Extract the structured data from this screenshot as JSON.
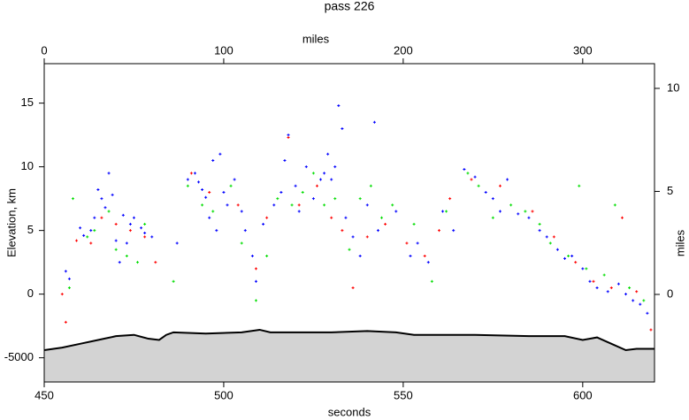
{
  "chart_data": {
    "type": "scatter",
    "title": "pass 226",
    "xlabel": "seconds",
    "x2label": "miles",
    "ylabel": "Elevation, km",
    "y2label": "miles",
    "xlim": [
      450,
      620
    ],
    "xticks": [
      450,
      500,
      550,
      600
    ],
    "x2lim": [
      0,
      340
    ],
    "x2ticks": [
      0,
      100,
      200,
      300
    ],
    "ylim": [
      -6.9,
      18.1
    ],
    "yticks": [
      {
        "value": -5,
        "label": "-5000"
      },
      0,
      5,
      10,
      15
    ],
    "y2lim": [
      -4.25,
      11.2
    ],
    "y2ticks": [
      0,
      5,
      10
    ],
    "terrain": {
      "color": "#d3d3d3",
      "line_color": "#000000",
      "x": [
        450,
        455,
        460,
        465,
        470,
        475,
        479,
        482,
        484,
        486,
        495,
        505,
        510,
        513,
        520,
        530,
        540,
        548,
        553,
        560,
        570,
        585,
        595,
        600,
        604,
        608,
        612,
        615,
        620
      ],
      "values": [
        -4.4,
        -4.2,
        -3.9,
        -3.6,
        -3.3,
        -3.2,
        -3.5,
        -3.6,
        -3.2,
        -3.0,
        -3.1,
        -3.0,
        -2.8,
        -3.0,
        -3.0,
        -3.0,
        -2.9,
        -3.0,
        -3.2,
        -3.2,
        -3.2,
        -3.3,
        -3.3,
        -3.6,
        -3.4,
        -3.9,
        -4.4,
        -4.3,
        -4.3
      ]
    },
    "series": [
      {
        "color": "#0000ff",
        "x": [
          456,
          457,
          460,
          461,
          463,
          464,
          465,
          466,
          467,
          468,
          469,
          470,
          471,
          472,
          473,
          474,
          475,
          477,
          478,
          480,
          487,
          490,
          492,
          493,
          494,
          495,
          496,
          497,
          498,
          499,
          500,
          501,
          503,
          505,
          506,
          508,
          509,
          511,
          514,
          516,
          517,
          518,
          520,
          521,
          523,
          525,
          527,
          528,
          529,
          530,
          531,
          532,
          533,
          534,
          536,
          538,
          540,
          542,
          543,
          548,
          552,
          554,
          557,
          561,
          564,
          567,
          570,
          573,
          575,
          577,
          579,
          582,
          585,
          588,
          590,
          593,
          595,
          597,
          600,
          602,
          604,
          607,
          610,
          612,
          614,
          616,
          618
        ],
        "values": [
          1.8,
          1.2,
          5.2,
          4.6,
          5.0,
          6.0,
          8.2,
          7.5,
          6.8,
          9.5,
          7.8,
          4.2,
          2.5,
          6.2,
          4.0,
          5.5,
          6.0,
          5.2,
          4.8,
          4.5,
          4.0,
          9.0,
          9.5,
          8.8,
          8.2,
          7.6,
          6.0,
          10.5,
          5.0,
          11.0,
          8.0,
          7.0,
          9.0,
          6.5,
          5.0,
          3.0,
          1.0,
          5.5,
          7.0,
          8.0,
          10.5,
          12.5,
          8.5,
          6.5,
          10.0,
          7.5,
          9.0,
          9.5,
          11.0,
          9.0,
          10.0,
          14.8,
          13.0,
          6.0,
          4.5,
          3.0,
          7.0,
          13.5,
          5.0,
          6.5,
          3.0,
          4.0,
          2.5,
          6.5,
          5.0,
          9.8,
          9.2,
          8.0,
          7.5,
          6.5,
          9.0,
          6.3,
          6.0,
          5.0,
          4.5,
          3.5,
          2.8,
          3.0,
          2.0,
          1.0,
          0.5,
          0.2,
          0.8,
          0.0,
          -0.5,
          -0.8,
          -1.5
        ]
      },
      {
        "color": "#00dd00",
        "x": [
          457,
          458,
          462,
          464,
          468,
          470,
          473,
          476,
          478,
          486,
          490,
          494,
          497,
          502,
          505,
          509,
          512,
          515,
          519,
          522,
          525,
          528,
          531,
          535,
          538,
          541,
          544,
          547,
          553,
          558,
          562,
          568,
          571,
          575,
          580,
          584,
          588,
          591,
          596,
          599,
          601,
          606,
          609,
          613,
          617
        ],
        "values": [
          0.5,
          7.5,
          4.5,
          5.0,
          6.5,
          3.5,
          3.0,
          2.5,
          5.5,
          1.0,
          8.5,
          7.0,
          6.5,
          8.5,
          4.0,
          -0.5,
          3.0,
          7.5,
          7.0,
          8.0,
          9.5,
          7.0,
          7.5,
          3.5,
          7.5,
          8.5,
          6.0,
          7.0,
          5.5,
          1.0,
          6.5,
          9.5,
          8.5,
          6.0,
          7.0,
          6.5,
          5.5,
          4.0,
          3.0,
          8.5,
          2.0,
          1.5,
          7.0,
          0.5,
          -0.5
        ]
      },
      {
        "color": "#ff0000",
        "x": [
          455,
          456,
          459,
          463,
          466,
          470,
          474,
          478,
          481,
          491,
          496,
          504,
          509,
          512,
          518,
          521,
          526,
          530,
          533,
          536,
          540,
          545,
          551,
          556,
          560,
          563,
          569,
          577,
          586,
          592,
          598,
          603,
          608,
          611,
          615,
          619
        ],
        "values": [
          0,
          -2.2,
          4.2,
          4.0,
          6.0,
          5.5,
          5.0,
          4.5,
          2.5,
          9.5,
          8.0,
          7.0,
          2.0,
          6.0,
          12.3,
          7.0,
          8.5,
          6.0,
          5.0,
          0.5,
          4.5,
          5.5,
          4.0,
          3.0,
          5.0,
          7.5,
          9.0,
          8.5,
          6.5,
          4.5,
          2.5,
          1.0,
          0.5,
          6.0,
          0.2,
          -2.8
        ]
      }
    ]
  }
}
